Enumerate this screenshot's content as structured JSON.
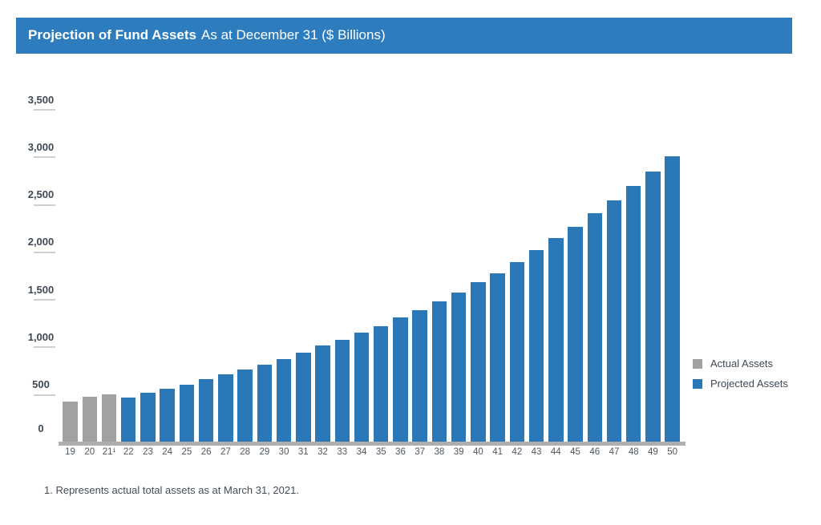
{
  "header": {
    "title": "Projection of Fund Assets",
    "subtitle": "As at December 31 ($ Billions)",
    "background_color": "#2d7cbe",
    "text_color": "#ffffff"
  },
  "chart_data": {
    "type": "bar",
    "title": "Projection of Fund Assets As at December 31 ($ Billions)",
    "xlabel": "",
    "ylabel": "",
    "ylim": [
      0,
      3500
    ],
    "y_tick_step": 500,
    "y_tick_labels": [
      "3,500",
      "3,000",
      "2,500",
      "2,000",
      "1,500",
      "1,000",
      "500",
      "0"
    ],
    "grid": false,
    "legend_position": "right",
    "categories": [
      "19",
      "20",
      "21¹",
      "22",
      "23",
      "24",
      "25",
      "26",
      "27",
      "28",
      "29",
      "30",
      "31",
      "32",
      "33",
      "34",
      "35",
      "36",
      "37",
      "38",
      "39",
      "40",
      "41",
      "42",
      "43",
      "44",
      "45",
      "46",
      "47",
      "48",
      "49",
      "50"
    ],
    "series": [
      {
        "name": "Actual Assets",
        "color": "#a1a1a1",
        "values": [
          420,
          475,
          497,
          null,
          null,
          null,
          null,
          null,
          null,
          null,
          null,
          null,
          null,
          null,
          null,
          null,
          null,
          null,
          null,
          null,
          null,
          null,
          null,
          null,
          null,
          null,
          null,
          null,
          null,
          null,
          null,
          null
        ]
      },
      {
        "name": "Projected Assets",
        "color": "#2b78b8",
        "values": [
          null,
          null,
          null,
          465,
          515,
          560,
          600,
          655,
          705,
          755,
          810,
          870,
          935,
          1010,
          1075,
          1145,
          1215,
          1310,
          1380,
          1475,
          1570,
          1675,
          1775,
          1890,
          2015,
          2140,
          2260,
          2400,
          2540,
          2690,
          2845,
          3000
        ]
      }
    ]
  },
  "footnote": {
    "text": "1. Represents actual total assets as at March 31, 2021."
  }
}
